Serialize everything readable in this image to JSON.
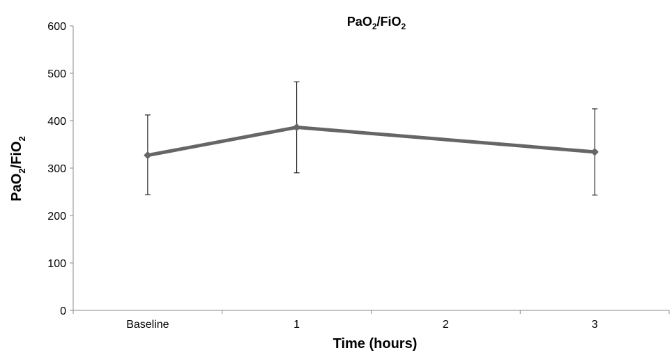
{
  "chart_data": {
    "type": "line",
    "title": "PaO2/FiO2",
    "xlabel": "Time (hours)",
    "ylabel": "PaO2/FiO2",
    "categories": [
      "Baseline",
      "1",
      "2",
      "3"
    ],
    "series": [
      {
        "x": [
          "Baseline",
          "1",
          "3"
        ],
        "values": [
          327,
          386,
          334
        ],
        "error_upper": [
          412,
          482,
          425
        ],
        "error_lower": [
          244,
          290,
          243
        ],
        "color": "#666666",
        "marker": "diamond"
      }
    ],
    "ylim": [
      0,
      600
    ],
    "yticks": [
      "0",
      "100",
      "200",
      "300",
      "400",
      "500",
      "600"
    ],
    "grid": false,
    "legend": "none"
  }
}
